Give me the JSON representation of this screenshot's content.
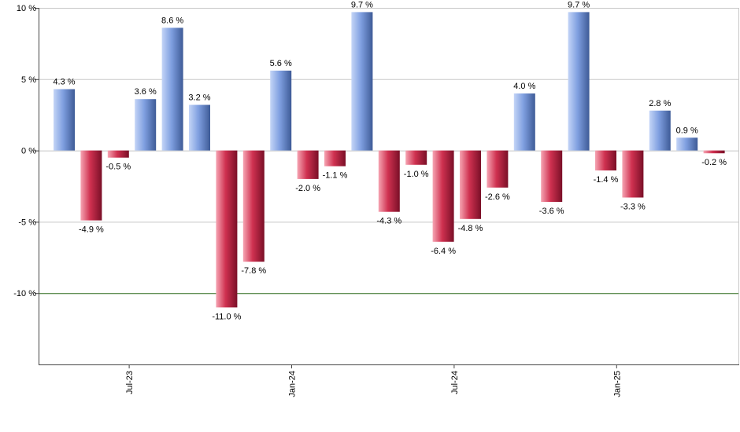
{
  "chart_data": {
    "type": "bar",
    "title": "",
    "xlabel": "",
    "ylabel": "",
    "ylim": [
      -15,
      10
    ],
    "y_ticks": [
      10,
      5,
      0,
      -5,
      -10
    ],
    "y_tick_labels": [
      "10 %",
      "5 %",
      "0 %",
      "-5 %",
      "-10 %"
    ],
    "reference_line": {
      "value": -10,
      "color": "#2e6b1f"
    },
    "x_tick_labels": [
      {
        "label": "Jul-23",
        "index": 2.4
      },
      {
        "label": "Jan-24",
        "index": 8.4
      },
      {
        "label": "Jul-24",
        "index": 14.4
      },
      {
        "label": "Jan-25",
        "index": 20.4
      }
    ],
    "values": [
      4.3,
      -4.9,
      -0.5,
      3.6,
      8.6,
      3.2,
      -11.0,
      -7.8,
      5.6,
      -2.0,
      -1.1,
      9.7,
      -4.3,
      -1.0,
      -6.4,
      -4.8,
      -2.6,
      4.0,
      -3.6,
      9.7,
      -1.4,
      -3.3,
      2.8,
      0.9,
      -0.2
    ],
    "value_labels": [
      "4.3 %",
      "-4.9 %",
      "-0.5 %",
      "3.6 %",
      "8.6 %",
      "3.2 %",
      "-11.0 %",
      "-7.8 %",
      "5.6 %",
      "-2.0 %",
      "-1.1 %",
      "9.7 %",
      "-4.3 %",
      "-1.0 %",
      "-6.4 %",
      "-4.8 %",
      "-2.6 %",
      "4.0 %",
      "-3.6 %",
      "9.7 %",
      "-1.4 %",
      "-3.3 %",
      "2.8 %",
      "0.9 %",
      "-0.2 %"
    ],
    "colors": {
      "positive": "#6f8fd0",
      "negative": "#c8304d",
      "grid": "#c8c8c8"
    }
  }
}
